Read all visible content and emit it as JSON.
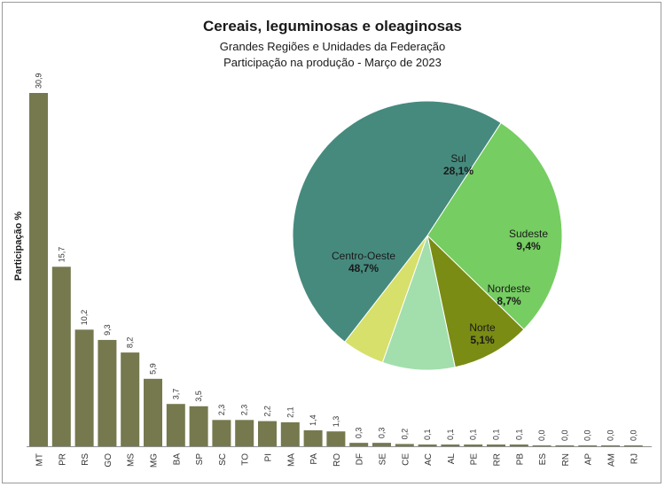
{
  "chart_data": [
    {
      "type": "bar",
      "title": "Cereais, leguminosas e oleaginosas",
      "subtitle": [
        "Grandes Regiões e Unidades da Federação",
        "Participação na produção - Março de 2023"
      ],
      "ylabel": "Participação %",
      "ylim": [
        0,
        31
      ],
      "grid": false,
      "color": "#76794e",
      "categories": [
        "MT",
        "PR",
        "RS",
        "GO",
        "MS",
        "MG",
        "BA",
        "SP",
        "SC",
        "TO",
        "PI",
        "MA",
        "PA",
        "RO",
        "DF",
        "SE",
        "CE",
        "AC",
        "AL",
        "PE",
        "RR",
        "PB",
        "ES",
        "RN",
        "AP",
        "AM",
        "RJ"
      ],
      "values": [
        30.9,
        15.7,
        10.2,
        9.3,
        8.2,
        5.9,
        3.7,
        3.5,
        2.3,
        2.3,
        2.2,
        2.1,
        1.4,
        1.3,
        0.3,
        0.3,
        0.2,
        0.1,
        0.1,
        0.1,
        0.1,
        0.1,
        0.0,
        0.0,
        0.0,
        0.0,
        0.0
      ],
      "value_labels": [
        "30,9",
        "15,7",
        "10,2",
        "9,3",
        "8,2",
        "5,9",
        "3,7",
        "3,5",
        "2,3",
        "2,3",
        "2,2",
        "2,1",
        "1,4",
        "1,3",
        "0,3",
        "0,3",
        "0,2",
        "0,1",
        "0,1",
        "0,1",
        "0,1",
        "0,1",
        "0,0",
        "0,0",
        "0,0",
        "0,0",
        "0,0"
      ]
    },
    {
      "type": "pie",
      "slices": [
        {
          "name": "Centro-Oeste",
          "value": 48.7,
          "label": "48,7%",
          "color": "#468a7e"
        },
        {
          "name": "Sul",
          "value": 28.1,
          "label": "28,1%",
          "color": "#76cd62"
        },
        {
          "name": "Sudeste",
          "value": 9.4,
          "label": "9,4%",
          "color": "#7a8c13"
        },
        {
          "name": "Nordeste",
          "value": 8.7,
          "label": "8,7%",
          "color": "#a3dead"
        },
        {
          "name": "Norte",
          "value": 5.1,
          "label": "5,1%",
          "color": "#d6e06b"
        }
      ]
    }
  ]
}
